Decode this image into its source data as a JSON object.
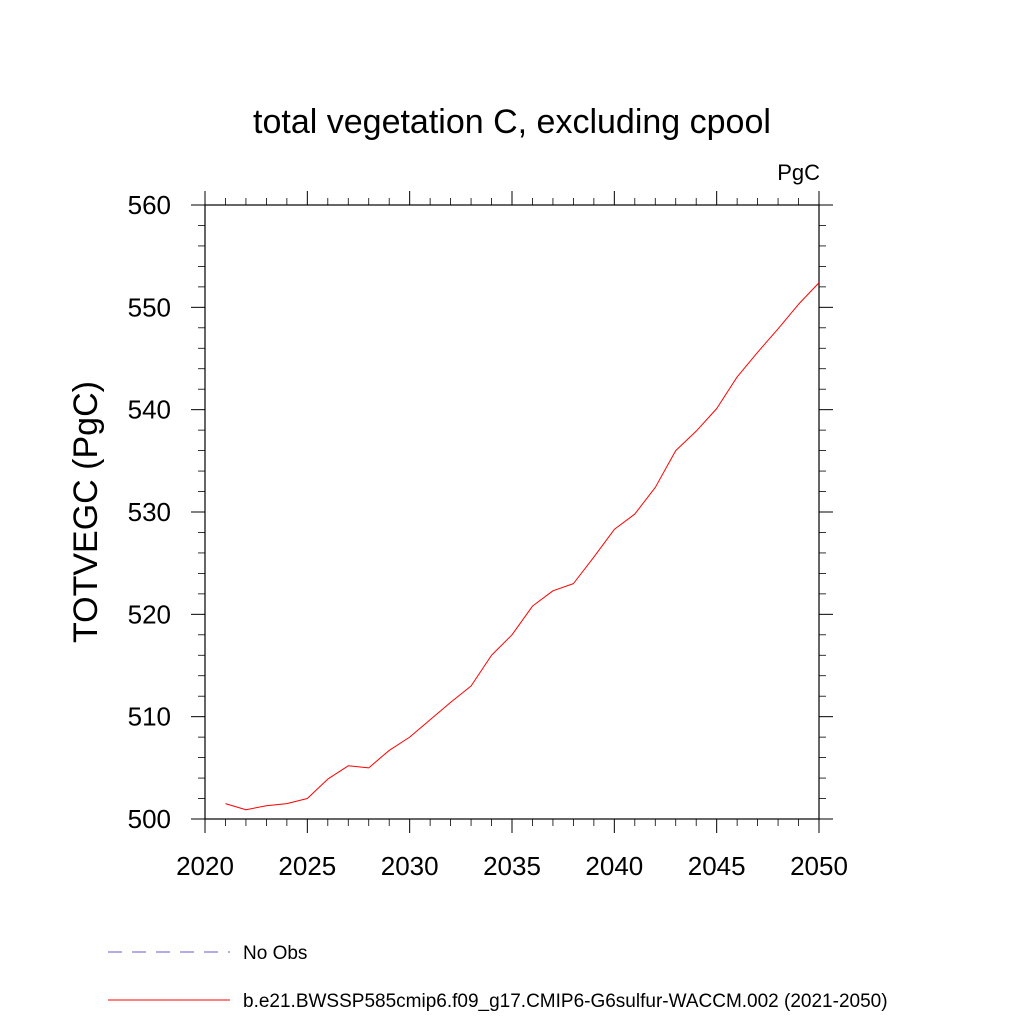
{
  "chart_data": {
    "type": "line",
    "title": "total vegetation C, excluding cpool",
    "units": "PgC",
    "ylabel": "TOTVEGC  (PgC)",
    "xlabel": "",
    "xlim": [
      2020,
      2050
    ],
    "ylim": [
      500,
      560
    ],
    "xticks": [
      2020,
      2025,
      2030,
      2035,
      2040,
      2045,
      2050
    ],
    "yticks": [
      500,
      510,
      520,
      530,
      540,
      550,
      560
    ],
    "grid": false,
    "legend_position": "bottom",
    "series": [
      {
        "name": "b.e21.BWSSP585cmip6.f09_g17.CMIP6-G6sulfur-WACCM.002 (2021-2050)",
        "color": "#ff0000",
        "x": [
          2021,
          2022,
          2023,
          2024,
          2025,
          2026,
          2027,
          2028,
          2029,
          2030,
          2031,
          2032,
          2033,
          2034,
          2035,
          2036,
          2037,
          2038,
          2039,
          2040,
          2041,
          2042,
          2043,
          2044,
          2045,
          2046,
          2047,
          2048,
          2049,
          2050
        ],
        "values": [
          501.5,
          500.9,
          501.3,
          501.5,
          502.0,
          503.9,
          505.2,
          505.0,
          506.7,
          508.0,
          509.7,
          511.4,
          513.0,
          516.0,
          518.0,
          520.8,
          522.3,
          523.0,
          525.6,
          528.3,
          529.8,
          532.4,
          536.0,
          537.9,
          540.1,
          543.2,
          545.6,
          547.9,
          550.3,
          552.4
        ]
      }
    ],
    "legend": [
      {
        "label": "No Obs",
        "color": "#6a5acd",
        "dash": true
      },
      {
        "label": "b.e21.BWSSP585cmip6.f09_g17.CMIP6-G6sulfur-WACCM.002 (2021-2050)",
        "color": "#ff0000",
        "dash": false
      }
    ]
  }
}
